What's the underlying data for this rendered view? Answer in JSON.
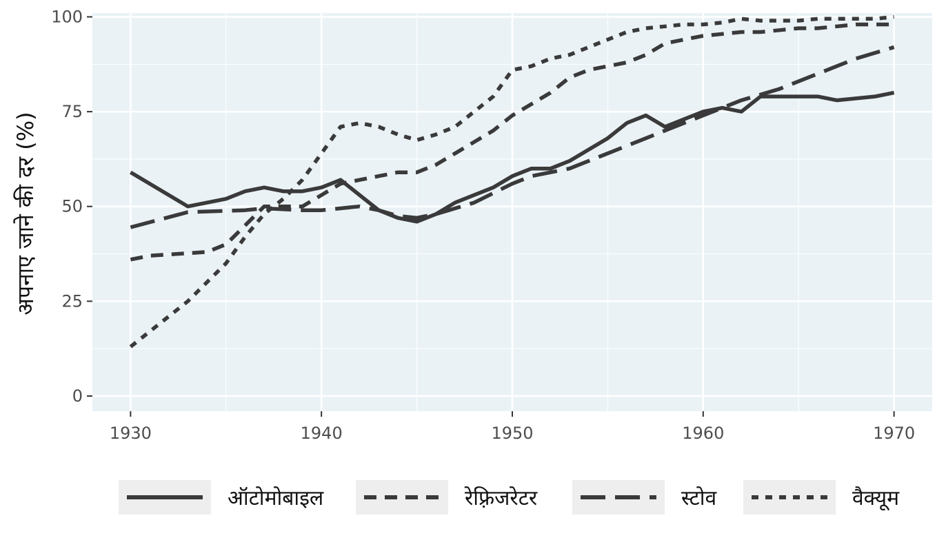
{
  "chart_data": {
    "type": "line",
    "title": "",
    "xlabel": "",
    "ylabel": "अपनाए जाने की दर (%)",
    "xlim": [
      1928,
      1972
    ],
    "ylim": [
      -4,
      101
    ],
    "x_ticks": [
      1930,
      1940,
      1950,
      1960,
      1970
    ],
    "y_ticks": [
      0,
      25,
      50,
      75,
      100
    ],
    "grid": true,
    "legend_position": "bottom",
    "colors": {
      "panel": "#eaf2f6",
      "grid": "#ffffff",
      "line": "#3a3a3a",
      "legend_key_bg": "#eeeeee"
    },
    "series": [
      {
        "name": "ऑटोमोबाइल",
        "dash": "solid",
        "points": [
          [
            1930,
            59
          ],
          [
            1933,
            50
          ],
          [
            1935,
            52
          ],
          [
            1936,
            54
          ],
          [
            1937,
            55
          ],
          [
            1938,
            54
          ],
          [
            1939,
            54
          ],
          [
            1940,
            55
          ],
          [
            1941,
            57
          ],
          [
            1942,
            53
          ],
          [
            1943,
            49
          ],
          [
            1944,
            47
          ],
          [
            1945,
            46
          ],
          [
            1946,
            48
          ],
          [
            1947,
            51
          ],
          [
            1948,
            53
          ],
          [
            1949,
            55
          ],
          [
            1950,
            58
          ],
          [
            1951,
            60
          ],
          [
            1952,
            60
          ],
          [
            1953,
            62
          ],
          [
            1954,
            65
          ],
          [
            1955,
            68
          ],
          [
            1956,
            72
          ],
          [
            1957,
            74
          ],
          [
            1958,
            71
          ],
          [
            1959,
            73
          ],
          [
            1960,
            75
          ],
          [
            1961,
            76
          ],
          [
            1962,
            75
          ],
          [
            1963,
            79
          ],
          [
            1964,
            79
          ],
          [
            1965,
            79
          ],
          [
            1966,
            79
          ],
          [
            1967,
            78
          ],
          [
            1968,
            78.5
          ],
          [
            1969,
            79
          ],
          [
            1970,
            80
          ]
        ]
      },
      {
        "name": "रेफ़्रिजरेटर",
        "dash": "dashed",
        "points": [
          [
            1930,
            36
          ],
          [
            1931,
            37
          ],
          [
            1934,
            38
          ],
          [
            1935,
            40
          ],
          [
            1936,
            45
          ],
          [
            1937,
            50
          ],
          [
            1938,
            50
          ],
          [
            1939,
            50
          ],
          [
            1940,
            53
          ],
          [
            1941,
            56
          ],
          [
            1942,
            57
          ],
          [
            1943,
            58
          ],
          [
            1944,
            59
          ],
          [
            1945,
            59
          ],
          [
            1946,
            61
          ],
          [
            1947,
            64
          ],
          [
            1948,
            67
          ],
          [
            1949,
            70
          ],
          [
            1950,
            74
          ],
          [
            1951,
            77
          ],
          [
            1952,
            80
          ],
          [
            1953,
            84
          ],
          [
            1954,
            86
          ],
          [
            1955,
            87
          ],
          [
            1956,
            88
          ],
          [
            1957,
            90
          ],
          [
            1958,
            93
          ],
          [
            1959,
            94
          ],
          [
            1960,
            95
          ],
          [
            1961,
            95.5
          ],
          [
            1962,
            96
          ],
          [
            1963,
            96
          ],
          [
            1964,
            96.5
          ],
          [
            1965,
            97
          ],
          [
            1966,
            97
          ],
          [
            1967,
            97.5
          ],
          [
            1968,
            98
          ],
          [
            1969,
            98
          ],
          [
            1970,
            98
          ]
        ]
      },
      {
        "name": "स्टोव",
        "dash": "longdash",
        "points": [
          [
            1930,
            44.5
          ],
          [
            1933,
            48.5
          ],
          [
            1936,
            49
          ],
          [
            1937,
            49.5
          ],
          [
            1939,
            49
          ],
          [
            1940,
            49
          ],
          [
            1942,
            50
          ],
          [
            1943,
            49
          ],
          [
            1944,
            47.5
          ],
          [
            1945,
            47
          ],
          [
            1946,
            48
          ],
          [
            1948,
            51
          ],
          [
            1950,
            56
          ],
          [
            1951,
            58
          ],
          [
            1953,
            60
          ],
          [
            1955,
            64
          ],
          [
            1956,
            66
          ],
          [
            1957,
            68
          ],
          [
            1958,
            70
          ],
          [
            1959,
            72
          ],
          [
            1960,
            74
          ],
          [
            1961,
            76
          ],
          [
            1962,
            78
          ],
          [
            1963,
            79.5
          ],
          [
            1964,
            81
          ],
          [
            1965,
            83
          ],
          [
            1966,
            85
          ],
          [
            1967,
            87
          ],
          [
            1968,
            89
          ],
          [
            1969,
            90.5
          ],
          [
            1970,
            92
          ]
        ]
      },
      {
        "name": "वैक्यूम",
        "dash": "dotted",
        "points": [
          [
            1930,
            13
          ],
          [
            1931,
            17
          ],
          [
            1932,
            21
          ],
          [
            1933,
            25
          ],
          [
            1934,
            30
          ],
          [
            1935,
            35
          ],
          [
            1936,
            42
          ],
          [
            1937,
            48
          ],
          [
            1938,
            52
          ],
          [
            1939,
            57
          ],
          [
            1940,
            64
          ],
          [
            1941,
            71
          ],
          [
            1942,
            72
          ],
          [
            1943,
            71
          ],
          [
            1944,
            69
          ],
          [
            1945,
            67.5
          ],
          [
            1946,
            69
          ],
          [
            1947,
            71
          ],
          [
            1948,
            75
          ],
          [
            1949,
            79
          ],
          [
            1950,
            86
          ],
          [
            1951,
            87
          ],
          [
            1952,
            89
          ],
          [
            1953,
            90
          ],
          [
            1954,
            92
          ],
          [
            1955,
            94
          ],
          [
            1956,
            96
          ],
          [
            1957,
            97
          ],
          [
            1958,
            97.5
          ],
          [
            1959,
            98
          ],
          [
            1960,
            98
          ],
          [
            1961,
            98.5
          ],
          [
            1962,
            99.5
          ],
          [
            1963,
            99
          ],
          [
            1964,
            99
          ],
          [
            1965,
            99
          ],
          [
            1966,
            99.5
          ],
          [
            1967,
            99.5
          ],
          [
            1968,
            99.5
          ],
          [
            1969,
            99.5
          ],
          [
            1970,
            100
          ]
        ]
      }
    ]
  }
}
